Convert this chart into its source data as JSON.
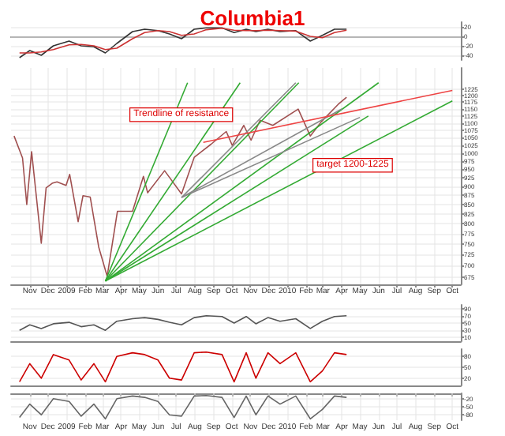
{
  "chart_data": [
    {
      "type": "line",
      "title": "Columbia1",
      "xlim": [
        "2008-10-01",
        "2010-10-15"
      ],
      "ylim": [
        -50,
        30
      ],
      "yticks": [
        -40,
        -20,
        0,
        20
      ],
      "grid": true,
      "tick_labels": "y",
      "x": [
        "2008-10-15",
        "2008-11-01",
        "2008-11-20",
        "2008-12-10",
        "2009-01-05",
        "2009-01-25",
        "2009-02-15",
        "2009-03-06",
        "2009-03-25",
        "2009-04-20",
        "2009-05-10",
        "2009-06-01",
        "2009-06-20",
        "2009-07-10",
        "2009-07-31",
        "2009-08-20",
        "2009-09-15",
        "2009-10-05",
        "2009-10-25",
        "2009-11-10",
        "2009-11-30",
        "2009-12-20",
        "2010-01-15",
        "2010-02-08",
        "2010-02-28",
        "2010-03-20",
        "2010-04-09"
      ],
      "series": [
        {
          "color": "#333333",
          "values": [
            -45,
            -30,
            -40,
            -20,
            -10,
            -20,
            -22,
            -35,
            -15,
            10,
            15,
            12,
            5,
            -5,
            15,
            18,
            18,
            8,
            15,
            10,
            15,
            10,
            12,
            -10,
            2,
            15,
            15
          ]
        },
        {
          "color": "#cc3333",
          "values": [
            -35,
            -35,
            -33,
            -28,
            -18,
            -17,
            -20,
            -28,
            -25,
            -5,
            8,
            12,
            10,
            2,
            5,
            14,
            17,
            13,
            12,
            12,
            13,
            12,
            11,
            0,
            -3,
            8,
            13
          ]
        }
      ]
    },
    {
      "type": "line",
      "log": true,
      "xlim": [
        "2008-10-01",
        "2010-10-15"
      ],
      "ylim": [
        660,
        1310
      ],
      "yticks": [
        675,
        700,
        725,
        750,
        775,
        800,
        825,
        850,
        875,
        900,
        925,
        950,
        975,
        1000,
        1025,
        1050,
        1075,
        1100,
        1125,
        1150,
        1175,
        1200,
        1225
      ],
      "xticks": [
        {
          "value": "2008-11-01",
          "label": "Nov"
        },
        {
          "value": "2008-12-01",
          "label": "Dec"
        },
        {
          "value": "2009-01-01",
          "label": "2009"
        },
        {
          "value": "2009-02-01",
          "label": "Feb"
        },
        {
          "value": "2009-03-01",
          "label": "Mar"
        },
        {
          "value": "2009-04-01",
          "label": "Apr"
        },
        {
          "value": "2009-05-01",
          "label": "May"
        },
        {
          "value": "2009-06-01",
          "label": "Jun"
        },
        {
          "value": "2009-07-01",
          "label": "Jul"
        },
        {
          "value": "2009-08-01",
          "label": "Aug"
        },
        {
          "value": "2009-09-01",
          "label": "Sep"
        },
        {
          "value": "2009-10-01",
          "label": "Oct"
        },
        {
          "value": "2009-11-01",
          "label": "Nov"
        },
        {
          "value": "2009-12-01",
          "label": "Dec"
        },
        {
          "value": "2010-01-01",
          "label": "2010"
        },
        {
          "value": "2010-02-01",
          "label": "Feb"
        },
        {
          "value": "2010-03-01",
          "label": "Mar"
        },
        {
          "value": "2010-04-01",
          "label": "Apr"
        },
        {
          "value": "2010-05-01",
          "label": "May"
        },
        {
          "value": "2010-06-01",
          "label": "Jun"
        },
        {
          "value": "2010-07-01",
          "label": "Jul"
        },
        {
          "value": "2010-08-01",
          "label": "Aug"
        },
        {
          "value": "2010-09-01",
          "label": "Sep"
        },
        {
          "value": "2010-10-01",
          "label": "Oct"
        }
      ],
      "grid": true,
      "annotations": [
        "Trendline of resistance",
        "target 1200-1225"
      ],
      "series": [
        {
          "color": "#a05050",
          "x": [
            "2008-10-06",
            "2008-10-20",
            "2008-10-27",
            "2008-11-04",
            "2008-11-20",
            "2008-11-28",
            "2008-12-08",
            "2008-12-16",
            "2008-12-31",
            "2009-01-06",
            "2009-01-20",
            "2009-01-28",
            "2009-02-09",
            "2009-02-23",
            "2009-03-09",
            "2009-03-26",
            "2009-04-20",
            "2009-05-08",
            "2009-05-15",
            "2009-06-12",
            "2009-07-10",
            "2009-07-31",
            "2009-08-28",
            "2009-09-22",
            "2009-10-02",
            "2009-10-21",
            "2009-11-02",
            "2009-11-17",
            "2009-12-08",
            "2010-01-19",
            "2010-02-08",
            "2010-02-26",
            "2010-03-26",
            "2010-04-09"
          ],
          "values": [
            1056,
            985,
            850,
            1005,
            752,
            896,
            909,
            913,
            903,
            935,
            805,
            874,
            870,
            743,
            677,
            832,
            832,
            929,
            882,
            946,
            879,
            987,
            1029,
            1071,
            1025,
            1092,
            1042,
            1110,
            1092,
            1150,
            1056,
            1104,
            1167,
            1194
          ]
        },
        {
          "color": "#33aa33",
          "x": [
            "2009-03-06",
            "2009-07-20"
          ],
          "values": [
            667,
            1250
          ]
        },
        {
          "color": "#33aa33",
          "x": [
            "2009-03-06",
            "2009-10-15"
          ],
          "values": [
            667,
            1250
          ]
        },
        {
          "color": "#33aa33",
          "x": [
            "2009-03-06",
            "2010-01-20"
          ],
          "values": [
            667,
            1250
          ]
        },
        {
          "color": "#33aa33",
          "x": [
            "2009-03-06",
            "2010-06-01"
          ],
          "values": [
            667,
            1250
          ]
        },
        {
          "color": "#33aa33",
          "x": [
            "2009-03-06",
            "2010-10-01"
          ],
          "values": [
            667,
            1180
          ]
        },
        {
          "color": "#33aa33",
          "x": [
            "2009-03-06",
            "2010-05-15"
          ],
          "values": [
            667,
            1125
          ]
        },
        {
          "color": "#888888",
          "x": [
            "2009-07-10",
            "2010-01-15"
          ],
          "values": [
            869,
            1250
          ]
        },
        {
          "color": "#888888",
          "x": [
            "2009-07-10",
            "2010-04-01"
          ],
          "values": [
            869,
            1150
          ]
        },
        {
          "color": "#888888",
          "x": [
            "2009-07-10",
            "2010-05-01"
          ],
          "values": [
            869,
            1120
          ]
        },
        {
          "color": "#ee4444",
          "x": [
            "2009-08-15",
            "2010-10-01"
          ],
          "values": [
            1035,
            1220
          ]
        }
      ]
    },
    {
      "type": "line",
      "xlim": [
        "2008-10-01",
        "2010-10-15"
      ],
      "ylim": [
        0,
        100
      ],
      "yticks": [
        10,
        30,
        50,
        70,
        90
      ],
      "grid": true,
      "tick_labels": "y",
      "x": [
        "2008-10-15",
        "2008-11-01",
        "2008-11-20",
        "2008-12-10",
        "2009-01-05",
        "2009-01-25",
        "2009-02-15",
        "2009-03-06",
        "2009-03-25",
        "2009-04-20",
        "2009-05-10",
        "2009-06-01",
        "2009-06-20",
        "2009-07-10",
        "2009-07-31",
        "2009-08-20",
        "2009-09-15",
        "2009-10-05",
        "2009-10-25",
        "2009-11-10",
        "2009-11-30",
        "2009-12-20",
        "2010-01-15",
        "2010-02-08",
        "2010-02-28",
        "2010-03-20",
        "2010-04-09"
      ],
      "series": [
        {
          "color": "#555555",
          "values": [
            30,
            45,
            35,
            48,
            52,
            40,
            45,
            30,
            55,
            62,
            65,
            60,
            52,
            45,
            65,
            70,
            68,
            50,
            68,
            48,
            65,
            55,
            62,
            35,
            55,
            68,
            70
          ]
        }
      ]
    },
    {
      "type": "line",
      "xlim": [
        "2008-10-01",
        "2010-10-15"
      ],
      "ylim": [
        0,
        100
      ],
      "yticks": [
        20,
        50,
        80
      ],
      "grid": true,
      "tick_labels": "y",
      "x": [
        "2008-10-15",
        "2008-11-01",
        "2008-11-20",
        "2008-12-10",
        "2009-01-05",
        "2009-01-25",
        "2009-02-15",
        "2009-03-06",
        "2009-03-25",
        "2009-04-20",
        "2009-05-10",
        "2009-06-01",
        "2009-06-20",
        "2009-07-10",
        "2009-07-31",
        "2009-08-20",
        "2009-09-15",
        "2009-10-05",
        "2009-10-25",
        "2009-11-10",
        "2009-11-30",
        "2009-12-20",
        "2010-01-15",
        "2010-02-08",
        "2010-02-28",
        "2010-03-20",
        "2010-04-09"
      ],
      "series": [
        {
          "color": "#cc0000",
          "values": [
            10,
            60,
            20,
            85,
            70,
            15,
            60,
            10,
            80,
            90,
            85,
            70,
            20,
            15,
            90,
            92,
            85,
            10,
            90,
            20,
            90,
            60,
            90,
            10,
            40,
            90,
            85
          ]
        }
      ]
    },
    {
      "type": "line",
      "xlim": [
        "2008-10-01",
        "2010-10-15"
      ],
      "ylim": [
        -100,
        0
      ],
      "yticks": [
        -20,
        -50,
        -80
      ],
      "grid": true,
      "xticks": [
        {
          "value": "2008-11-01",
          "label": "Nov"
        },
        {
          "value": "2008-12-01",
          "label": "Dec"
        },
        {
          "value": "2009-01-01",
          "label": "2009"
        },
        {
          "value": "2009-02-01",
          "label": "Feb"
        },
        {
          "value": "2009-03-01",
          "label": "Mar"
        },
        {
          "value": "2009-04-01",
          "label": "Apr"
        },
        {
          "value": "2009-05-01",
          "label": "May"
        },
        {
          "value": "2009-06-01",
          "label": "Jun"
        },
        {
          "value": "2009-07-01",
          "label": "Jul"
        },
        {
          "value": "2009-08-01",
          "label": "Aug"
        },
        {
          "value": "2009-09-01",
          "label": "Sep"
        },
        {
          "value": "2009-10-01",
          "label": "Oct"
        },
        {
          "value": "2009-11-01",
          "label": "Nov"
        },
        {
          "value": "2009-12-01",
          "label": "Dec"
        },
        {
          "value": "2010-01-01",
          "label": "2010"
        },
        {
          "value": "2010-02-01",
          "label": "Feb"
        },
        {
          "value": "2010-03-01",
          "label": "Mar"
        },
        {
          "value": "2010-04-01",
          "label": "Apr"
        },
        {
          "value": "2010-05-01",
          "label": "May"
        },
        {
          "value": "2010-06-01",
          "label": "Jun"
        },
        {
          "value": "2010-07-01",
          "label": "Jul"
        },
        {
          "value": "2010-08-01",
          "label": "Aug"
        },
        {
          "value": "2010-09-01",
          "label": "Sep"
        },
        {
          "value": "2010-10-01",
          "label": "Oct"
        }
      ],
      "x": [
        "2008-10-15",
        "2008-11-01",
        "2008-11-20",
        "2008-12-10",
        "2009-01-05",
        "2009-01-25",
        "2009-02-15",
        "2009-03-06",
        "2009-03-25",
        "2009-04-20",
        "2009-05-10",
        "2009-06-01",
        "2009-06-20",
        "2009-07-10",
        "2009-07-31",
        "2009-08-20",
        "2009-09-15",
        "2009-10-05",
        "2009-10-25",
        "2009-11-10",
        "2009-11-30",
        "2009-12-20",
        "2010-01-15",
        "2010-02-08",
        "2010-02-28",
        "2010-03-20",
        "2010-04-09"
      ],
      "series": [
        {
          "color": "#666666",
          "values": [
            -90,
            -40,
            -80,
            -20,
            -30,
            -85,
            -40,
            -95,
            -20,
            -10,
            -15,
            -30,
            -80,
            -85,
            -10,
            -8,
            -15,
            -90,
            -10,
            -80,
            -10,
            -40,
            -10,
            -95,
            -60,
            -10,
            -15
          ]
        }
      ]
    }
  ]
}
